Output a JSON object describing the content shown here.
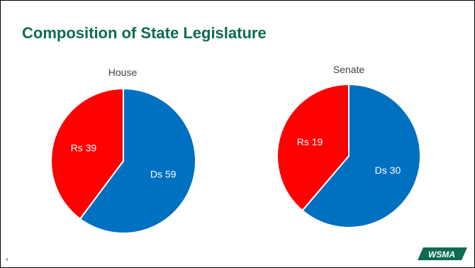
{
  "slide": {
    "title": "Composition of State Legislature",
    "page_number": "4",
    "logo_text": "WSMA"
  },
  "colors": {
    "title": "#0d6b52",
    "democrats": "#0070c0",
    "republicans": "#ff0000",
    "logo": "#0d6b52"
  },
  "chart_data": [
    {
      "type": "pie",
      "title": "House",
      "categories": [
        "Ds",
        "Rs"
      ],
      "values": [
        59,
        39
      ],
      "labels": [
        "Ds 59",
        "Rs 39"
      ],
      "colors": [
        "#0070c0",
        "#ff0000"
      ]
    },
    {
      "type": "pie",
      "title": "Senate",
      "categories": [
        "Ds",
        "Rs"
      ],
      "values": [
        30,
        19
      ],
      "labels": [
        "Ds 30",
        "Rs 19"
      ],
      "colors": [
        "#0070c0",
        "#ff0000"
      ]
    }
  ]
}
